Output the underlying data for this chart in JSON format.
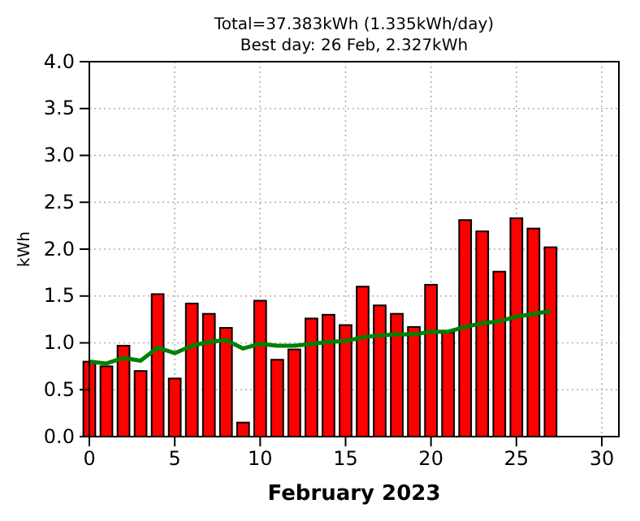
{
  "chart_data": {
    "type": "bar",
    "title": "Total=37.383kWh (1.335kWh/day)",
    "subtitle": "Best day: 26 Feb, 2.327kWh",
    "xlabel": "February 2023",
    "ylabel": "kWh",
    "x": [
      0,
      1,
      2,
      3,
      4,
      5,
      6,
      7,
      8,
      9,
      10,
      11,
      12,
      13,
      14,
      15,
      16,
      17,
      18,
      19,
      20,
      21,
      22,
      23,
      24,
      25,
      26,
      27
    ],
    "series": [
      {
        "color": "#ff0000",
        "values": [
          0.8,
          0.75,
          0.97,
          0.7,
          1.52,
          0.62,
          1.42,
          1.31,
          1.16,
          0.15,
          1.45,
          0.82,
          0.93,
          1.26,
          1.3,
          1.19,
          1.6,
          1.4,
          1.31,
          1.17,
          1.62,
          1.11,
          2.31,
          2.19,
          1.76,
          2.33,
          2.22,
          2.02
        ]
      },
      {
        "type": "line",
        "color": "#008000",
        "values": [
          0.8,
          0.78,
          0.84,
          0.81,
          0.95,
          0.89,
          0.97,
          1.01,
          1.03,
          0.94,
          0.99,
          0.97,
          0.97,
          0.99,
          1.01,
          1.02,
          1.06,
          1.08,
          1.09,
          1.09,
          1.12,
          1.12,
          1.17,
          1.21,
          1.23,
          1.28,
          1.31,
          1.34
        ]
      }
    ],
    "xlim": [
      0,
      31
    ],
    "xticks": [
      0,
      5,
      10,
      15,
      20,
      25,
      30
    ],
    "ylim": [
      0,
      4
    ],
    "yticks": [
      {
        "value": 0,
        "label": "0.0"
      },
      {
        "value": 0.5,
        "label": "0.5"
      },
      {
        "value": 1,
        "label": "1.0"
      },
      {
        "value": 1.5,
        "label": "1.5"
      },
      {
        "value": 2,
        "label": "2.0"
      },
      {
        "value": 2.5,
        "label": "2.5"
      },
      {
        "value": 3,
        "label": "3.0"
      },
      {
        "value": 3.5,
        "label": "3.5"
      },
      {
        "value": 4,
        "label": "4.0"
      }
    ],
    "grid": true,
    "line_style": "solid",
    "marker": "none"
  }
}
